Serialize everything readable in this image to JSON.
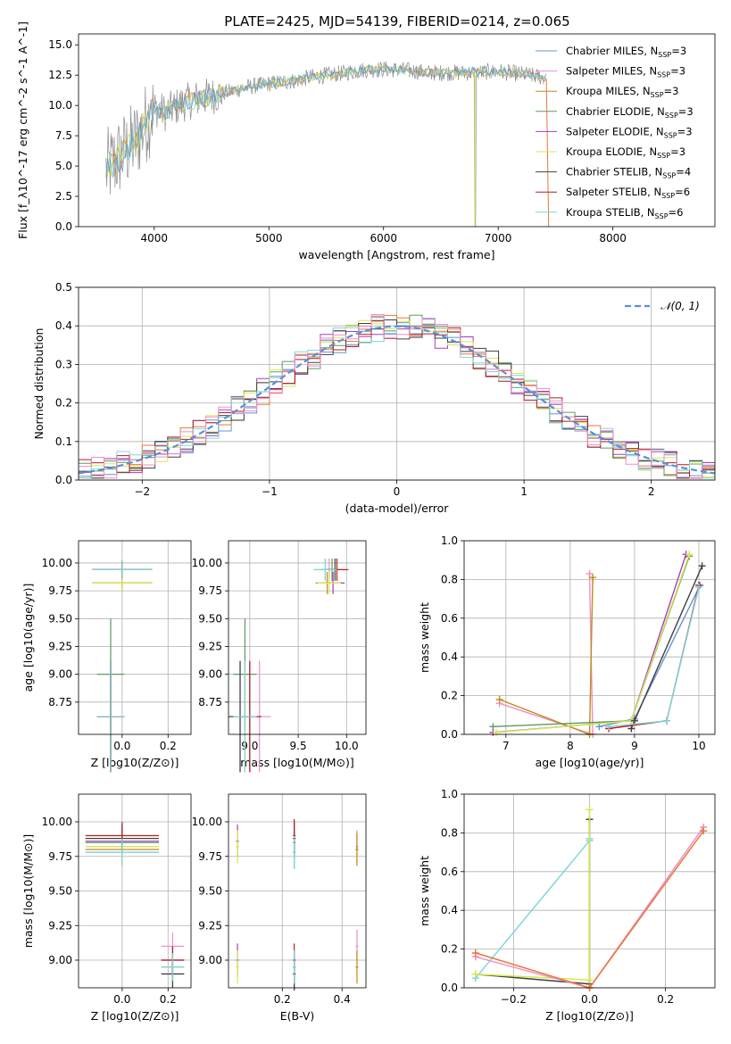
{
  "title": "PLATE=2425, MJD=54139, FIBERID=0214, z=0.065",
  "colors": {
    "Chabrier MILES": "#6a93d0",
    "Salpeter MILES": "#ee8fc8",
    "Kroupa MILES": "#c28a1a",
    "Chabrier ELODIE": "#5e9a60",
    "Salpeter ELODIE": "#a83cc0",
    "Kroupa ELODIE": "#d7e84c",
    "Chabrier STELIB": "#404040",
    "Salpeter STELIB": "#b41e1e",
    "Kroupa STELIB": "#7fd6dc",
    "data": "#8c8c8c",
    "orange": "#e8773a"
  },
  "chart_data": [
    {
      "id": "spectrum",
      "type": "line",
      "xlabel": "wavelength [Angstrom, rest frame]",
      "ylabel": "Flux [f_λ10^-17 erg cm^-2 s^-1 A^-1]",
      "xlim": [
        3340,
        8890
      ],
      "ylim": [
        0,
        15.9
      ],
      "xticks": [
        4000,
        5000,
        6000,
        7000,
        8000
      ],
      "yticks": [
        0.0,
        2.5,
        5.0,
        7.5,
        10.0,
        12.5,
        15.0
      ],
      "ytick_labels": [
        "0.0",
        "2.5",
        "5.0",
        "7.5",
        "10.0",
        "12.5",
        "15.0"
      ],
      "legend": [
        "Chabrier MILES, N_SSP=3",
        "Salpeter MILES, N_SSP=3",
        "Kroupa MILES, N_SSP=3",
        "Chabrier ELODIE, N_SSP=3",
        "Salpeter ELODIE, N_SSP=3",
        "Kroupa ELODIE, N_SSP=3",
        "Chabrier STELIB, N_SSP=4",
        "Salpeter STELIB, N_SSP=6",
        "Kroupa STELIB, N_SSP=6"
      ],
      "legend_loc": "right",
      "data_trend": {
        "x": [
          3580,
          3700,
          3850,
          4000,
          4100,
          4250,
          4400,
          4600,
          4800,
          5000,
          5200,
          5400,
          5600,
          5800,
          6000,
          6200,
          6400,
          6600,
          6800,
          7000,
          7200,
          7400
        ],
        "y": [
          4.6,
          5.8,
          7.2,
          9.8,
          9.4,
          10.2,
          10.6,
          11.0,
          11.5,
          11.8,
          12.0,
          12.4,
          12.6,
          12.9,
          13.0,
          12.9,
          12.7,
          12.7,
          12.7,
          12.8,
          12.6,
          12.3
        ]
      }
    },
    {
      "id": "residuals",
      "type": "area",
      "xlabel": "(data-model)/error",
      "ylabel": "Normed distribution",
      "xlim": [
        -2.5,
        2.5
      ],
      "ylim": [
        0,
        0.5
      ],
      "xticks": [
        -2,
        -1,
        0,
        1,
        2
      ],
      "xtick_labels": [
        "−2",
        "−1",
        "0",
        "1",
        "2"
      ],
      "yticks": [
        0.0,
        0.1,
        0.2,
        0.3,
        0.4,
        0.5
      ],
      "ytick_labels": [
        "0.0",
        "0.1",
        "0.2",
        "0.3",
        "0.4",
        "0.5"
      ],
      "legend": [
        "𝒩(0, 1)"
      ],
      "legend_loc": "upper right",
      "bin_width": 0.1
    },
    {
      "id": "age-vs-z",
      "type": "scatter",
      "xlabel": "Z [log10(Z/Z⊙)]",
      "ylabel": "age [log10(age/yr)]",
      "xlim": [
        -0.19,
        0.3
      ],
      "ylim": [
        8.46,
        10.2
      ],
      "xticks": [
        0.0,
        0.2
      ],
      "xtick_labels": [
        "0.0",
        "0.2"
      ],
      "yticks": [
        8.75,
        9.0,
        9.25,
        9.5,
        9.75,
        10.0
      ],
      "ytick_labels": [
        "8.75",
        "9.00",
        "9.25",
        "9.50",
        "9.75",
        "10.00"
      ]
    },
    {
      "id": "age-vs-mass",
      "type": "scatter",
      "xlabel": "mass [log10(M/M⊙)]",
      "ylabel": "",
      "xlim": [
        8.78,
        10.2
      ],
      "ylim": [
        8.46,
        10.2
      ],
      "xticks": [
        9.0,
        9.5,
        10.0
      ],
      "xtick_labels": [
        "9.0",
        "9.5",
        "10.0"
      ],
      "yticks": [
        8.75,
        9.0,
        9.25,
        9.5,
        9.75,
        10.0
      ],
      "ytick_labels": [
        "8.75",
        "9.00",
        "9.25",
        "9.50",
        "9.75",
        "10.00"
      ]
    },
    {
      "id": "massweight-vs-age",
      "type": "line",
      "xlabel": "age [log10(age/yr)]",
      "ylabel": "mass weight",
      "xlim": [
        6.35,
        10.25
      ],
      "ylim": [
        0,
        1.0
      ],
      "xticks": [
        7,
        8,
        9,
        10
      ],
      "xtick_labels": [
        "7",
        "8",
        "9",
        "10"
      ],
      "yticks": [
        0.0,
        0.2,
        0.4,
        0.6,
        0.8,
        1.0
      ],
      "ytick_labels": [
        "0.0",
        "0.2",
        "0.4",
        "0.6",
        "0.8",
        "1.0"
      ]
    },
    {
      "id": "mass-vs-z",
      "type": "scatter",
      "xlabel": "Z [log10(Z/Z⊙)]",
      "ylabel": "mass [log10(M/M⊙)]",
      "xlim": [
        -0.19,
        0.3
      ],
      "ylim": [
        8.8,
        10.2
      ],
      "xticks": [
        0.0,
        0.2
      ],
      "xtick_labels": [
        "0.0",
        "0.2"
      ],
      "yticks": [
        9.0,
        9.25,
        9.5,
        9.75,
        10.0
      ],
      "ytick_labels": [
        "9.00",
        "9.25",
        "9.50",
        "9.75",
        "10.00"
      ]
    },
    {
      "id": "mass-vs-ebv",
      "type": "scatter",
      "xlabel": "E(B-V)",
      "ylabel": "",
      "xlim": [
        0.02,
        0.48
      ],
      "ylim": [
        8.8,
        10.2
      ],
      "xticks": [
        0.2,
        0.4
      ],
      "xtick_labels": [
        "0.2",
        "0.4"
      ],
      "yticks": [
        9.0,
        9.25,
        9.5,
        9.75,
        10.0
      ],
      "ytick_labels": [
        "9.00",
        "9.25",
        "9.50",
        "9.75",
        "10.00"
      ]
    },
    {
      "id": "massweight-vs-z",
      "type": "line",
      "xlabel": "Z [log10(Z/Z⊙)]",
      "ylabel": "mass weight",
      "xlim": [
        -0.33,
        0.33
      ],
      "ylim": [
        0,
        1.0
      ],
      "xticks": [
        -0.2,
        0.0,
        0.2
      ],
      "xtick_labels": [
        "−0.2",
        "0.0",
        "0.2"
      ],
      "yticks": [
        0.0,
        0.2,
        0.4,
        0.6,
        0.8,
        1.0
      ],
      "ytick_labels": [
        "0.0",
        "0.2",
        "0.4",
        "0.6",
        "0.8",
        "1.0"
      ]
    }
  ],
  "models": [
    {
      "name": "Chabrier MILES",
      "age": [
        8.62,
        9.94,
        10.02
      ],
      "mass": [
        8.9,
        9.78,
        9.92
      ],
      "Z": [
        -0.3,
        0.0,
        0.3
      ],
      "ebv": 0.24,
      "w_age": [
        0.04,
        0.08,
        0.77
      ]
    },
    {
      "name": "Salpeter MILES",
      "age": [
        8.62,
        9.94,
        10.02
      ],
      "mass": [
        9.1,
        9.82,
        9.98
      ],
      "Z": [
        -0.3,
        0.0,
        0.3
      ],
      "ebv": 0.45,
      "w_age": [
        0.16,
        0.0,
        0.83
      ]
    },
    {
      "name": "Kroupa MILES",
      "age": [
        8.62,
        9.82,
        10.0
      ],
      "mass": [
        8.95,
        9.8,
        9.95
      ],
      "Z": [
        -0.3,
        0.0,
        0.3
      ],
      "ebv": 0.45,
      "w_age": [
        0.18,
        0.0,
        0.81
      ]
    },
    {
      "name": "Chabrier ELODIE",
      "age": [
        9.0,
        9.94,
        10.02
      ],
      "mass": [
        8.95,
        9.85,
        9.9
      ],
      "Z": [
        -0.3,
        0.0,
        0.3
      ],
      "ebv": 0.24,
      "w_age": [
        0.04,
        0.07,
        0.92
      ]
    },
    {
      "name": "Salpeter ELODIE",
      "age": [
        8.62,
        9.82,
        10.0
      ],
      "mass": [
        9.0,
        9.86,
        10.05
      ],
      "Z": [
        -0.3,
        0.0,
        0.3
      ],
      "ebv": 0.05,
      "w_age": [
        0.01,
        0.07,
        0.93
      ]
    },
    {
      "name": "Kroupa ELODIE",
      "age": [
        8.62,
        9.82,
        10.0
      ],
      "mass": [
        8.95,
        9.82,
        9.92
      ],
      "Z": [
        -0.3,
        0.0,
        0.3
      ],
      "ebv": 0.05,
      "w_age": [
        0.01,
        0.07,
        0.93
      ]
    },
    {
      "name": "Chabrier STELIB",
      "age": [
        8.62,
        9.94,
        10.02
      ],
      "mass": [
        8.9,
        9.88,
        9.95
      ],
      "Z": [
        -0.3,
        0.0,
        0.3
      ],
      "ebv": 0.24,
      "w_age": [
        0.03,
        0.07,
        0.87
      ]
    },
    {
      "name": "Salpeter STELIB",
      "age": [
        8.62,
        9.94,
        10.02
      ],
      "mass": [
        9.0,
        9.9,
        10.0
      ],
      "Z": [
        -0.3,
        0.0,
        0.3
      ],
      "ebv": 0.24,
      "w_age": [
        0.03,
        0.07,
        0.77
      ]
    },
    {
      "name": "Kroupa STELIB",
      "age": [
        8.62,
        9.94,
        10.02
      ],
      "mass": [
        8.95,
        9.78,
        9.9
      ],
      "Z": [
        -0.3,
        0.0,
        0.3
      ],
      "ebv": 0.24,
      "w_age": [
        0.04,
        0.07,
        0.76
      ]
    }
  ],
  "mass_weight_age_x": [
    [
      8.45,
      9.0,
      10.02
    ],
    [
      6.9,
      8.35,
      8.3
    ],
    [
      6.9,
      8.3,
      8.35
    ],
    [
      6.8,
      8.95,
      9.85
    ],
    [
      6.8,
      8.95,
      9.8
    ],
    [
      6.85,
      8.95,
      9.85
    ],
    [
      8.95,
      9.0,
      10.05
    ],
    [
      8.6,
      9.5,
      10.0
    ],
    [
      8.6,
      9.5,
      10.0
    ]
  ],
  "mass_weight_z": [
    {
      "name": "Chabrier STELIB",
      "Z": [
        -0.3,
        0.0,
        0.0
      ],
      "w": [
        0.07,
        0.02,
        0.87
      ]
    },
    {
      "name": "Kroupa STELIB",
      "Z": [
        -0.3,
        0.0,
        0.0
      ],
      "w": [
        0.05,
        0.76,
        0.77
      ]
    },
    {
      "name": "Kroupa ELODIE",
      "Z": [
        -0.3,
        0.0,
        0.0
      ],
      "w": [
        0.07,
        0.04,
        0.92
      ]
    },
    {
      "name": "Salpeter MILES",
      "Z": [
        -0.3,
        0.0,
        0.3
      ],
      "w": [
        0.16,
        0.0,
        0.83
      ]
    },
    {
      "name": "Kroupa MILES",
      "Z": [
        -0.3,
        0.0,
        0.3
      ],
      "w": [
        0.18,
        0.0,
        0.81
      ]
    }
  ]
}
